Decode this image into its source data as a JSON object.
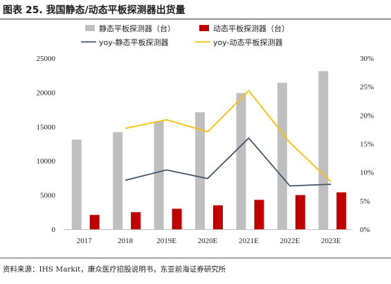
{
  "header": {
    "title": "图表 25. 我国静态/动态平板探测器出货量"
  },
  "footer": {
    "source": "资料来源：IHS Markit，康众医疗招股说明书，东亚前海证券研究所"
  },
  "colors": {
    "static_bar": "#bfbfbf",
    "dynamic_bar": "#c00000",
    "yoy_static_line": "#44546a",
    "yoy_dynamic_line": "#ffc000"
  },
  "chart_data": {
    "type": "bar",
    "categories": [
      "2017",
      "2018",
      "2019E",
      "2020E",
      "2021E",
      "2022E",
      "2023E"
    ],
    "series": [
      {
        "name": "静态平板探测器（台）",
        "type": "bar",
        "axis": "left",
        "values": [
          13100,
          14200,
          15800,
          17100,
          19900,
          21400,
          23100
        ]
      },
      {
        "name": "动态平板探测器（台）",
        "type": "bar",
        "axis": "left",
        "values": [
          2100,
          2500,
          3000,
          3500,
          4300,
          5000,
          5400
        ]
      },
      {
        "name": "yoy-静态平板探测器",
        "type": "line",
        "axis": "right",
        "values": [
          null,
          8.6,
          10.4,
          8.9,
          16.0,
          7.6,
          7.9
        ]
      },
      {
        "name": "yoy-动态平板探测器",
        "type": "line",
        "axis": "right",
        "values": [
          null,
          17.7,
          19.2,
          17.1,
          24.3,
          15.2,
          8.3
        ]
      }
    ],
    "ylim_left": [
      0,
      25000
    ],
    "yticks_left": [
      "0",
      "5000",
      "10000",
      "15000",
      "20000",
      "25000"
    ],
    "ylim_right": [
      0,
      30
    ],
    "yticks_right": [
      "0%",
      "5%",
      "10%",
      "15%",
      "20%",
      "25%",
      "30%"
    ],
    "legend_position": "top",
    "grid": false
  }
}
